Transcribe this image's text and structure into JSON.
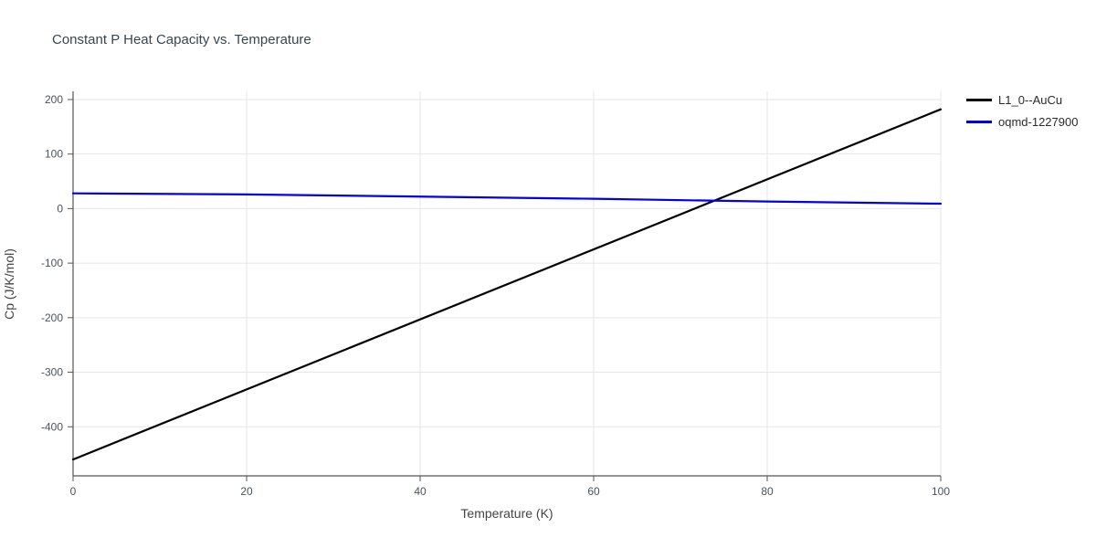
{
  "chart_data": {
    "type": "line",
    "title": "Constant P Heat Capacity vs. Temperature",
    "xlabel": "Temperature (K)",
    "ylabel": "Cp (J/K/mol)",
    "xlim": [
      0,
      100
    ],
    "ylim": [
      -490,
      215
    ],
    "xticks": [
      0,
      20,
      40,
      60,
      80,
      100
    ],
    "yticks": [
      -400,
      -300,
      -200,
      -100,
      0,
      100,
      200
    ],
    "grid": true,
    "legend_position": "top-right-outside",
    "series": [
      {
        "name": "L1_0--AuCu",
        "color": "#000000",
        "x": [
          0,
          100
        ],
        "y": [
          -460,
          182
        ]
      },
      {
        "name": "oqmd-1227900",
        "color": "#0000ee",
        "x": [
          0,
          20,
          40,
          60,
          80,
          100
        ],
        "y": [
          28,
          26,
          22,
          18,
          13,
          9
        ]
      }
    ],
    "colors": {
      "grid": "#e6e6e6",
      "axis": "#555555",
      "tick_label": "#49535b",
      "title": "#37474f"
    }
  }
}
